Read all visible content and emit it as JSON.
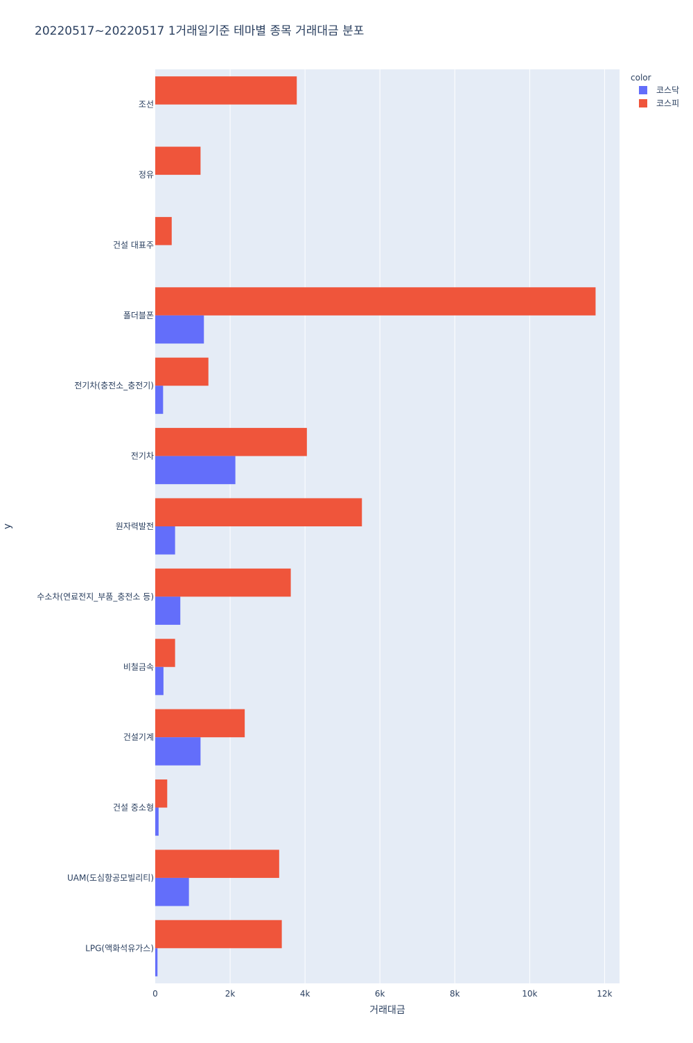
{
  "chart_data": {
    "type": "bar",
    "orientation": "horizontal",
    "barmode": "group",
    "title": "20220517~20220517 1거래일기준 테마별 종목 거래대금 분포",
    "xlabel": "거래대금",
    "ylabel": "y",
    "xlim": [
      0,
      12400
    ],
    "x_ticks": [
      0,
      2000,
      4000,
      6000,
      8000,
      10000,
      12000
    ],
    "x_tick_labels": [
      "0",
      "2k",
      "4k",
      "6k",
      "8k",
      "10k",
      "12k"
    ],
    "categories": [
      "조선",
      "정유",
      "건설 대표주",
      "폴더블폰",
      "전기차(충전소_충전기)",
      "전기차",
      "원자력발전",
      "수소차(연료전지_부품_충전소 등)",
      "비철금속",
      "건설기계",
      "건설 중소형",
      "UAM(도심항공모빌리티)",
      "LPG(액화석유가스)"
    ],
    "series": [
      {
        "name": "코스닥",
        "color": "#636efa",
        "values": [
          0,
          0,
          0,
          1300,
          210,
          2140,
          530,
          670,
          220,
          1210,
          90,
          900,
          60
        ]
      },
      {
        "name": "코스피",
        "color": "#ef553b",
        "values": [
          3780,
          1210,
          440,
          11760,
          1420,
          4050,
          5520,
          3620,
          530,
          2390,
          320,
          3310,
          3380
        ]
      }
    ],
    "legend": {
      "title": "color",
      "position": "top-right"
    },
    "grid": true
  }
}
